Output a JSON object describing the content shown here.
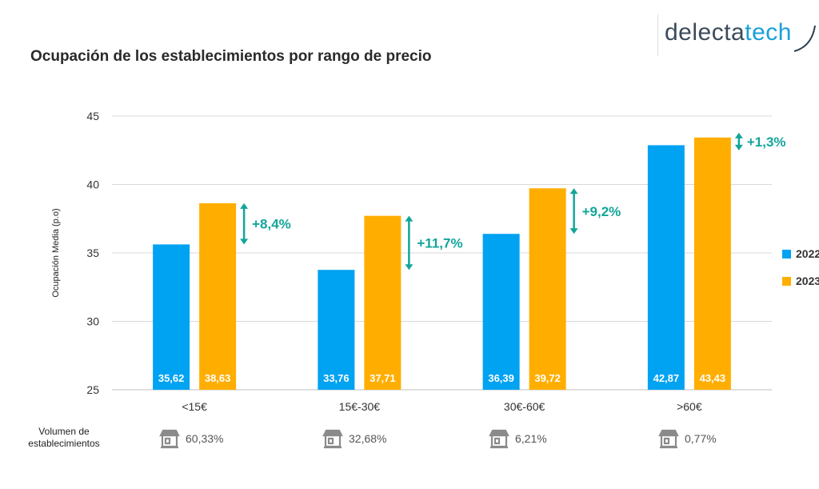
{
  "title": "Ocupación de los establecimientos por rango de precio",
  "brand": {
    "part1": "delecta",
    "part2": "tech"
  },
  "volume_label_line1": "Volumen de",
  "volume_label_line2": "establecimientos",
  "volumes": [
    "60,33%",
    "32,68%",
    "6,21%",
    "0,77%"
  ],
  "icon": "building-icon",
  "colors": {
    "2022": "#00a2f2",
    "2023": "#ffae00",
    "change": "#12a59a",
    "grid": "#d9d9d9"
  },
  "chart_data": {
    "type": "bar",
    "title": "Ocupación de los establecimientos por rango de precio",
    "xlabel": "",
    "ylabel": "Ocupación Media (p.o)",
    "ylim": [
      25,
      45
    ],
    "yticks": [
      25,
      30,
      35,
      40,
      45
    ],
    "categories": [
      "<15€",
      "15€-30€",
      "30€-60€",
      ">60€"
    ],
    "series": [
      {
        "name": "2022",
        "values": [
          35.62,
          33.76,
          36.39,
          42.87
        ],
        "labels": [
          "35,62",
          "33,76",
          "36,39",
          "42,87"
        ]
      },
      {
        "name": "2023",
        "values": [
          38.63,
          37.71,
          39.72,
          43.43
        ],
        "labels": [
          "38,63",
          "37,71",
          "39,72",
          "43,43"
        ]
      }
    ],
    "changes": [
      "+8,4%",
      "+11,7%",
      "+9,2%",
      "+1,3%"
    ],
    "legend": "right",
    "grid": true
  }
}
